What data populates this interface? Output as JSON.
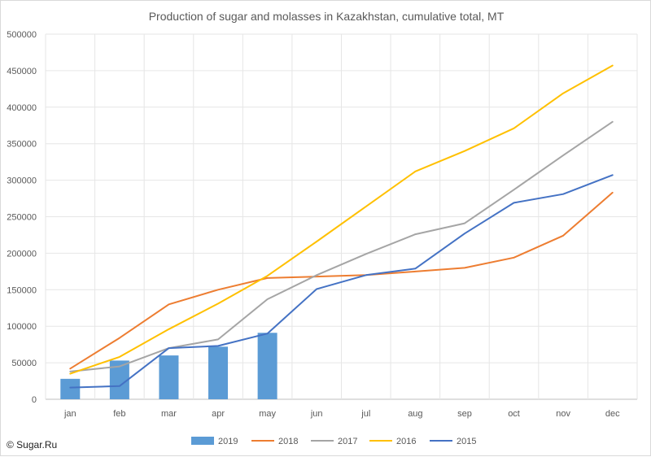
{
  "chart_data": {
    "type": "bar+line",
    "title": "Production of sugar and molasses in Kazakhstan, cumulative total, MT",
    "categories": [
      "jan",
      "feb",
      "mar",
      "apr",
      "may",
      "jun",
      "jul",
      "aug",
      "sep",
      "oct",
      "nov",
      "dec"
    ],
    "ylim": [
      0,
      500000
    ],
    "yticks": [
      0,
      50000,
      100000,
      150000,
      200000,
      250000,
      300000,
      350000,
      400000,
      450000,
      500000
    ],
    "grid": true,
    "legend_position": "bottom",
    "bars": {
      "name": "2019",
      "color": "#5b9bd5",
      "values": [
        28000,
        53000,
        60000,
        72000,
        91000
      ]
    },
    "series": [
      {
        "name": "2018",
        "color": "#ed7d31",
        "values": [
          42000,
          84000,
          130000,
          150000,
          166000,
          168000,
          170000,
          175000,
          180000,
          194000,
          224000,
          283000
        ]
      },
      {
        "name": "2017",
        "color": "#a5a5a5",
        "values": [
          38000,
          45000,
          70000,
          82000,
          137000,
          170000,
          199000,
          226000,
          241000,
          287000,
          334000,
          380000
        ]
      },
      {
        "name": "2016",
        "color": "#ffc000",
        "values": [
          35000,
          58000,
          96000,
          131000,
          169000,
          216000,
          264000,
          312000,
          340000,
          371000,
          419000,
          457000
        ]
      },
      {
        "name": "2015",
        "color": "#4472c4",
        "values": [
          16000,
          18000,
          70000,
          73000,
          90000,
          151000,
          170000,
          179000,
          227000,
          269000,
          281000,
          307000
        ]
      }
    ]
  },
  "footer": {
    "copyright": "© Sugar.Ru"
  }
}
